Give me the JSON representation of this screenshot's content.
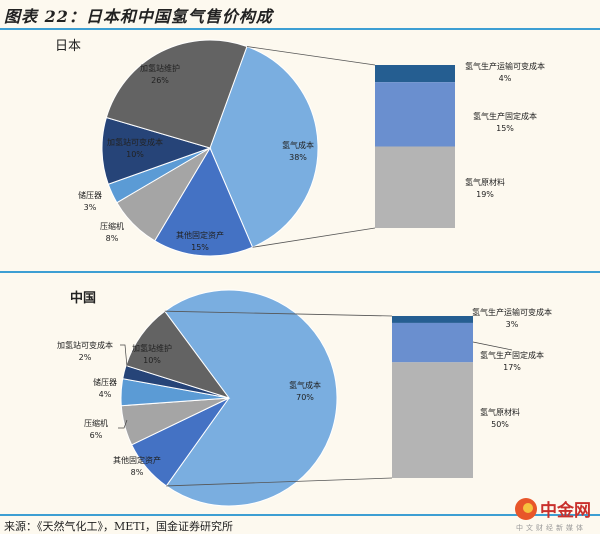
{
  "title": "图表 22：日本和中国氢气售价构成",
  "source": "来源：《天然气化工》，METI，国金证券研究所",
  "watermark": {
    "name": "中金网",
    "sub": "中文财经新媒体"
  },
  "chart_data": [
    {
      "type": "bar-of-pie",
      "title": "日本",
      "unit": "%",
      "pie": [
        {
          "label": "氢气成本",
          "value": 38,
          "color": "#7aaee0"
        },
        {
          "label": "其他固定资产",
          "value": 15,
          "color": "#4472c4"
        },
        {
          "label": "压缩机",
          "value": 8,
          "color": "#a5a5a5"
        },
        {
          "label": "储压器",
          "value": 3,
          "color": "#5b9bd5"
        },
        {
          "label": "加氢站可变成本",
          "value": 10,
          "color": "#264478"
        },
        {
          "label": "加氢站维护",
          "value": 26,
          "color": "#636363"
        }
      ],
      "bar": [
        {
          "label": "氢气生产运输可变成本",
          "value": 4,
          "color": "#255e91"
        },
        {
          "label": "氢气生产固定成本",
          "value": 15,
          "color": "#6a8fcf"
        },
        {
          "label": "氢气原材料",
          "value": 19,
          "color": "#b4b4b4"
        }
      ]
    },
    {
      "type": "bar-of-pie",
      "title": "中国",
      "unit": "%",
      "pie": [
        {
          "label": "氢气成本",
          "value": 70,
          "color": "#7aaee0"
        },
        {
          "label": "其他固定资产",
          "value": 8,
          "color": "#4472c4"
        },
        {
          "label": "压缩机",
          "value": 6,
          "color": "#a5a5a5"
        },
        {
          "label": "储压器",
          "value": 4,
          "color": "#5b9bd5"
        },
        {
          "label": "加氢站可变成本",
          "value": 2,
          "color": "#264478"
        },
        {
          "label": "加氢站维护",
          "value": 10,
          "color": "#636363"
        }
      ],
      "bar": [
        {
          "label": "氢气生产运输可变成本",
          "value": 3,
          "color": "#255e91"
        },
        {
          "label": "氢气生产固定成本",
          "value": 17,
          "color": "#6a8fcf"
        },
        {
          "label": "氢气原材料",
          "value": 50,
          "color": "#b4b4b4"
        }
      ]
    }
  ]
}
